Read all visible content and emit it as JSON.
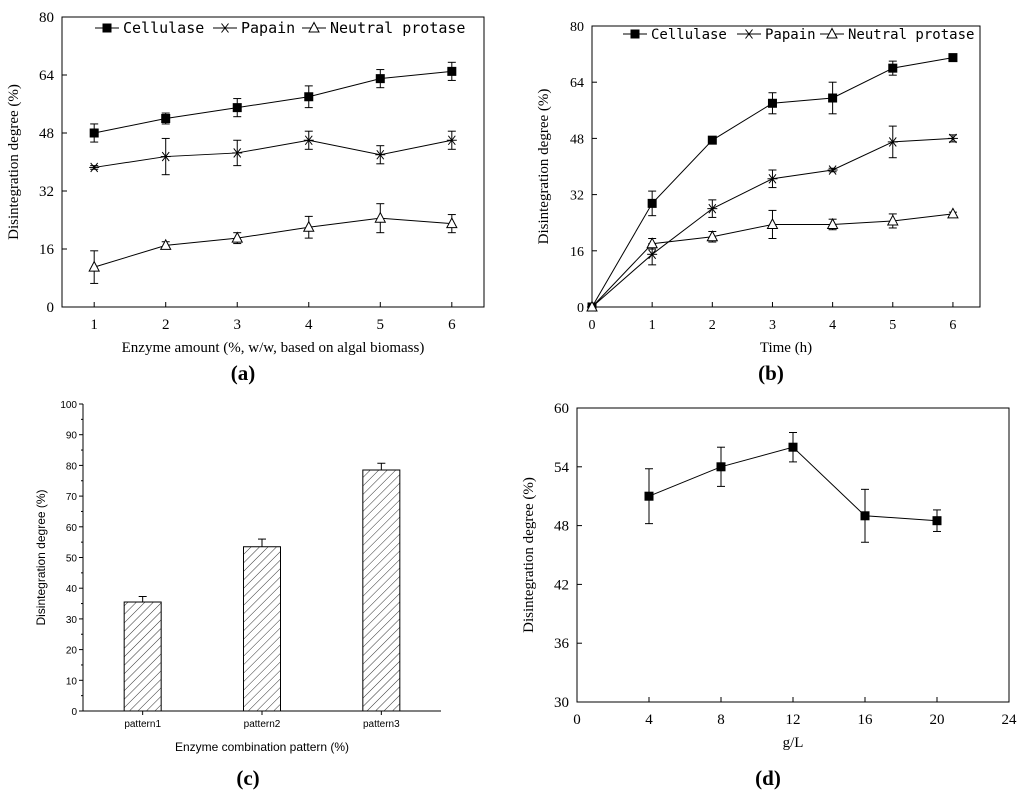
{
  "chart_data": [
    {
      "id": "a",
      "type": "line",
      "panel_label": "(a)",
      "title": "",
      "xlabel": "Enzyme amount (%, w/w, based on algal biomass)",
      "ylabel": "Disintegration degree (%)",
      "xlim": [
        0.55,
        6.45
      ],
      "ylim": [
        0,
        80
      ],
      "xticks": [
        1,
        2,
        3,
        4,
        5,
        6
      ],
      "yticks": [
        0,
        16,
        32,
        48,
        64,
        80
      ],
      "legend_position": "top",
      "series": [
        {
          "name": "Cellulase",
          "marker": "square",
          "x": [
            1,
            2,
            3,
            4,
            5,
            6
          ],
          "values": [
            48,
            52,
            55,
            58,
            63,
            65
          ],
          "errors": [
            2.5,
            1.5,
            2.5,
            3,
            2.5,
            2.5
          ]
        },
        {
          "name": "Papain",
          "marker": "asterisk",
          "x": [
            1,
            2,
            3,
            4,
            5,
            6
          ],
          "values": [
            38.5,
            41.5,
            42.5,
            46,
            42,
            46
          ],
          "errors": [
            0.5,
            5,
            3.5,
            2.5,
            2.5,
            2.5
          ]
        },
        {
          "name": "Neutral protase",
          "marker": "triangle",
          "x": [
            1,
            2,
            3,
            4,
            5,
            6
          ],
          "values": [
            11,
            17,
            19,
            22,
            24.5,
            23
          ],
          "errors": [
            4.5,
            1,
            1.5,
            3,
            4,
            2.5
          ]
        }
      ]
    },
    {
      "id": "b",
      "type": "line",
      "panel_label": "(b)",
      "title": "",
      "xlabel": "Time (h)",
      "ylabel": "Disintegration degree (%)",
      "xlim": [
        0,
        6.45
      ],
      "ylim": [
        0,
        80
      ],
      "xticks": [
        0,
        1,
        2,
        3,
        4,
        5,
        6
      ],
      "yticks": [
        0,
        16,
        32,
        48,
        64,
        80
      ],
      "legend_position": "top",
      "series": [
        {
          "name": "Cellulase",
          "marker": "square",
          "x": [
            0,
            1,
            2,
            3,
            4,
            5,
            6
          ],
          "values": [
            0,
            29.5,
            47.5,
            58,
            59.5,
            68,
            71
          ],
          "errors": [
            0,
            3.5,
            1,
            3,
            4.5,
            2,
            0.5
          ]
        },
        {
          "name": "Papain",
          "marker": "asterisk",
          "x": [
            0,
            1,
            2,
            3,
            4,
            5,
            6
          ],
          "values": [
            0,
            15,
            28,
            36.5,
            39,
            47,
            48
          ],
          "errors": [
            0,
            3,
            2.5,
            2.5,
            0.5,
            4.5,
            1
          ]
        },
        {
          "name": "Neutral protase",
          "marker": "triangle",
          "x": [
            0,
            1,
            2,
            3,
            4,
            5,
            6
          ],
          "values": [
            0,
            18,
            20,
            23.5,
            23.5,
            24.5,
            26.5
          ],
          "errors": [
            0,
            1.5,
            1.5,
            4,
            1.5,
            2,
            0.5
          ]
        }
      ]
    },
    {
      "id": "c",
      "type": "bar",
      "panel_label": "(c)",
      "title": "",
      "xlabel": "Enzyme combination pattern (%)",
      "ylabel": "Disintegration degree (%)",
      "ylim": [
        0,
        100
      ],
      "yticks": [
        0,
        10,
        20,
        30,
        40,
        50,
        60,
        70,
        80,
        90,
        100
      ],
      "categories": [
        "pattern1",
        "pattern2",
        "pattern3"
      ],
      "values": [
        35.5,
        53.5,
        78.5
      ],
      "errors": [
        1.8,
        2.5,
        2.2
      ]
    },
    {
      "id": "d",
      "type": "line",
      "panel_label": "(d)",
      "title": "",
      "xlabel": "g/L",
      "ylabel": "Disintegration degree (%)",
      "xlim": [
        0,
        24
      ],
      "ylim": [
        30,
        60
      ],
      "xticks": [
        0,
        4,
        8,
        12,
        16,
        20,
        24
      ],
      "yticks": [
        30,
        36,
        42,
        48,
        54,
        60
      ],
      "series": [
        {
          "name": "",
          "marker": "square",
          "x": [
            4,
            8,
            12,
            16,
            20
          ],
          "values": [
            51,
            54,
            56,
            49,
            48.5
          ],
          "errors": [
            2.8,
            2,
            1.5,
            2.7,
            1.1
          ]
        }
      ]
    }
  ]
}
